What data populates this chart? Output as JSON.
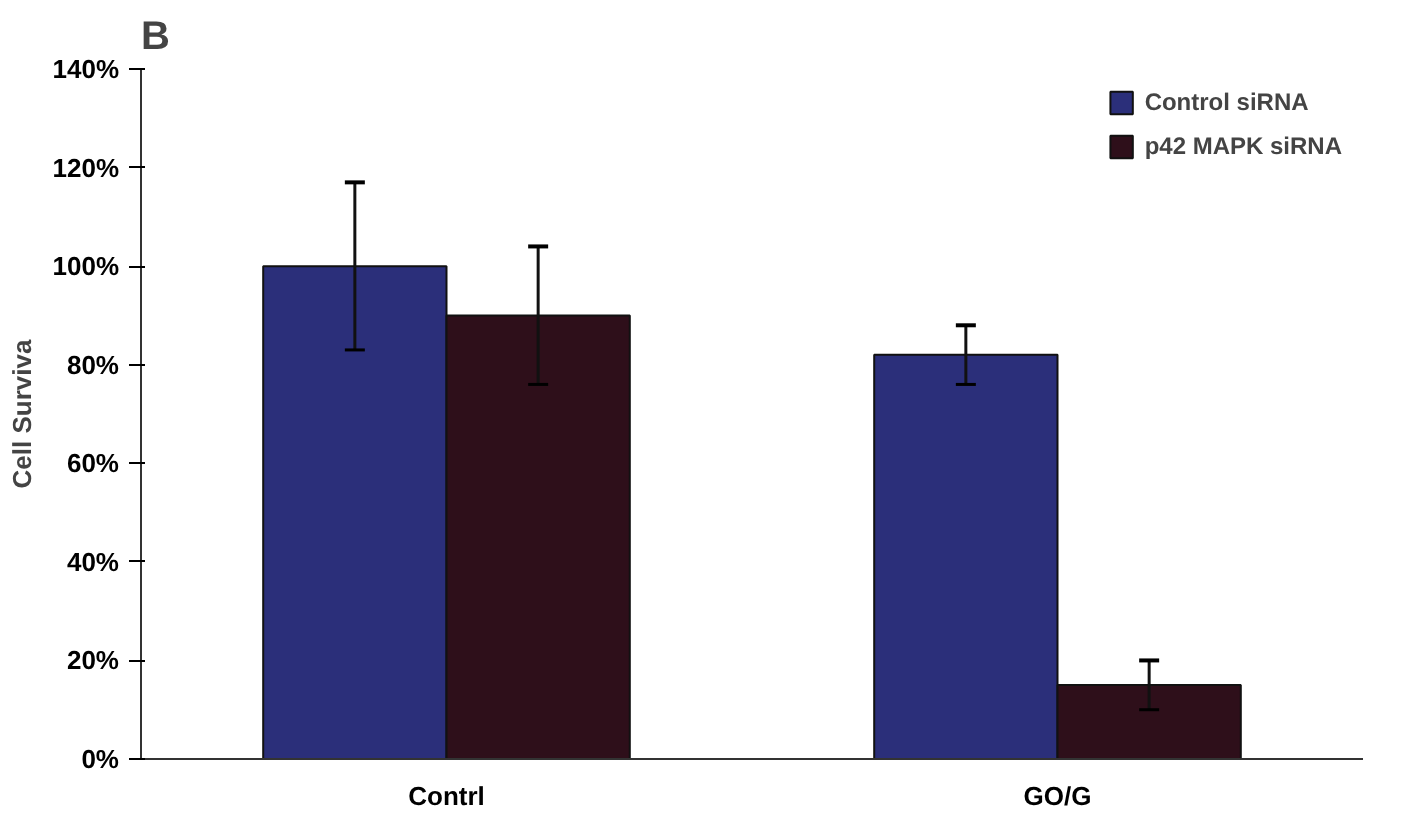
{
  "chart_data": {
    "type": "bar",
    "title": "B",
    "ylabel": "Cell Surviva",
    "categories": [
      "Contrl",
      "GO/G"
    ],
    "series": [
      {
        "name": "Control siRNA",
        "color": "#2b2f7a",
        "values": [
          100,
          82
        ],
        "errors": [
          17,
          6
        ]
      },
      {
        "name": "p42 MAPK siRNA",
        "color": "#2e0f1a",
        "values": [
          90,
          15
        ],
        "errors": [
          14,
          5
        ]
      }
    ],
    "ylim": [
      0,
      140
    ],
    "yticks": [
      {
        "value": 0,
        "label": "0%"
      },
      {
        "value": 20,
        "label": "20%"
      },
      {
        "value": 40,
        "label": "40%"
      },
      {
        "value": 60,
        "label": "60%"
      },
      {
        "value": 80,
        "label": "80%"
      },
      {
        "value": 100,
        "label": "100%"
      },
      {
        "value": 120,
        "label": "120%"
      },
      {
        "value": 140,
        "label": "140%"
      }
    ],
    "grid": false,
    "legend": "top right"
  }
}
